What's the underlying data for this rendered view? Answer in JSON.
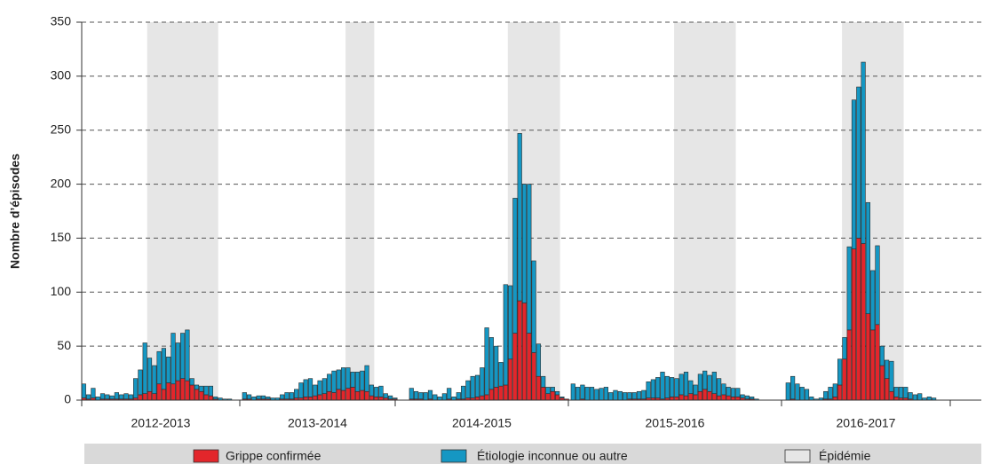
{
  "chart_data": {
    "type": "bar",
    "stacked": true,
    "ylabel": "Nombre d’épisodes",
    "ylim": [
      0,
      350
    ],
    "yticks": [
      0,
      50,
      100,
      150,
      200,
      250,
      300,
      350
    ],
    "grid": true,
    "groups": [
      "2012-2013",
      "2013-2014",
      "2014-2015",
      "2015-2016",
      "2016-2017"
    ],
    "series": [
      {
        "name": "Grippe confirmée",
        "color": "#e3262b",
        "values": [
          [
            2,
            1,
            2,
            0,
            1,
            1,
            1,
            1,
            1,
            1,
            1,
            2,
            5,
            6,
            8,
            6,
            15,
            10,
            16,
            15,
            18,
            20,
            18,
            14,
            10,
            8,
            5,
            4,
            1,
            0,
            0,
            0,
            0
          ],
          [
            1,
            1,
            0,
            1,
            1,
            1,
            0,
            0,
            1,
            1,
            1,
            2,
            2,
            3,
            3,
            4,
            5,
            6,
            8,
            7,
            10,
            9,
            11,
            12,
            8,
            9,
            8,
            4,
            3,
            3,
            2,
            1,
            1
          ],
          [
            1,
            1,
            1,
            0,
            1,
            0,
            0,
            0,
            1,
            0,
            1,
            1,
            2,
            2,
            3,
            4,
            5,
            10,
            12,
            13,
            14,
            38,
            62,
            92,
            90,
            62,
            44,
            22,
            12,
            6,
            8,
            5,
            2,
            1
          ],
          [
            0,
            0,
            1,
            0,
            0,
            0,
            0,
            0,
            0,
            0,
            0,
            0,
            1,
            1,
            1,
            1,
            2,
            2,
            2,
            1,
            2,
            3,
            3,
            5,
            4,
            6,
            5,
            8,
            10,
            8,
            6,
            4,
            5,
            4,
            3,
            3,
            2,
            1,
            1,
            0
          ],
          [
            0,
            1,
            0,
            0,
            0,
            0,
            0,
            0,
            1,
            1,
            3,
            14,
            38,
            65,
            140,
            150,
            145,
            80,
            65,
            70,
            32,
            20,
            8,
            3,
            2,
            2,
            1,
            0,
            0,
            0,
            0,
            0
          ]
        ]
      },
      {
        "name": "Étiologie inconnue ou autre",
        "color": "#1597c3",
        "values": [
          [
            13,
            4,
            9,
            3,
            5,
            4,
            3,
            6,
            4,
            5,
            4,
            18,
            23,
            47,
            31,
            26,
            30,
            38,
            24,
            47,
            35,
            42,
            47,
            6,
            4,
            5,
            8,
            9,
            2,
            2,
            1,
            1,
            0
          ],
          [
            6,
            4,
            3,
            3,
            3,
            2,
            2,
            2,
            4,
            6,
            6,
            8,
            14,
            16,
            17,
            10,
            13,
            14,
            16,
            20,
            18,
            21,
            19,
            14,
            18,
            18,
            24,
            10,
            9,
            10,
            4,
            3,
            1
          ],
          [
            10,
            7,
            6,
            7,
            8,
            5,
            3,
            6,
            10,
            3,
            6,
            12,
            16,
            20,
            20,
            26,
            62,
            48,
            38,
            22,
            93,
            68,
            125,
            155,
            110,
            138,
            85,
            30,
            10,
            6,
            4,
            3,
            1,
            0
          ],
          [
            15,
            12,
            13,
            12,
            12,
            10,
            11,
            12,
            7,
            9,
            8,
            7,
            6,
            6,
            7,
            8,
            15,
            17,
            19,
            25,
            20,
            18,
            17,
            19,
            22,
            12,
            9,
            16,
            17,
            15,
            20,
            16,
            10,
            8,
            8,
            8,
            3,
            3,
            2,
            1
          ],
          [
            16,
            21,
            15,
            12,
            10,
            3,
            1,
            2,
            7,
            11,
            12,
            24,
            20,
            77,
            138,
            140,
            168,
            103,
            55,
            73,
            18,
            17,
            28,
            9,
            10,
            10,
            6,
            5,
            6,
            2,
            3,
            2
          ]
        ]
      }
    ],
    "epidemic": {
      "name": "Épidémie",
      "color": "#e6e6e6",
      "spans": [
        [
          14,
          28
        ],
        [
          22,
          27
        ],
        [
          21,
          31
        ],
        [
          22,
          34
        ],
        [
          12,
          24
        ]
      ]
    },
    "legend": "bottom"
  }
}
